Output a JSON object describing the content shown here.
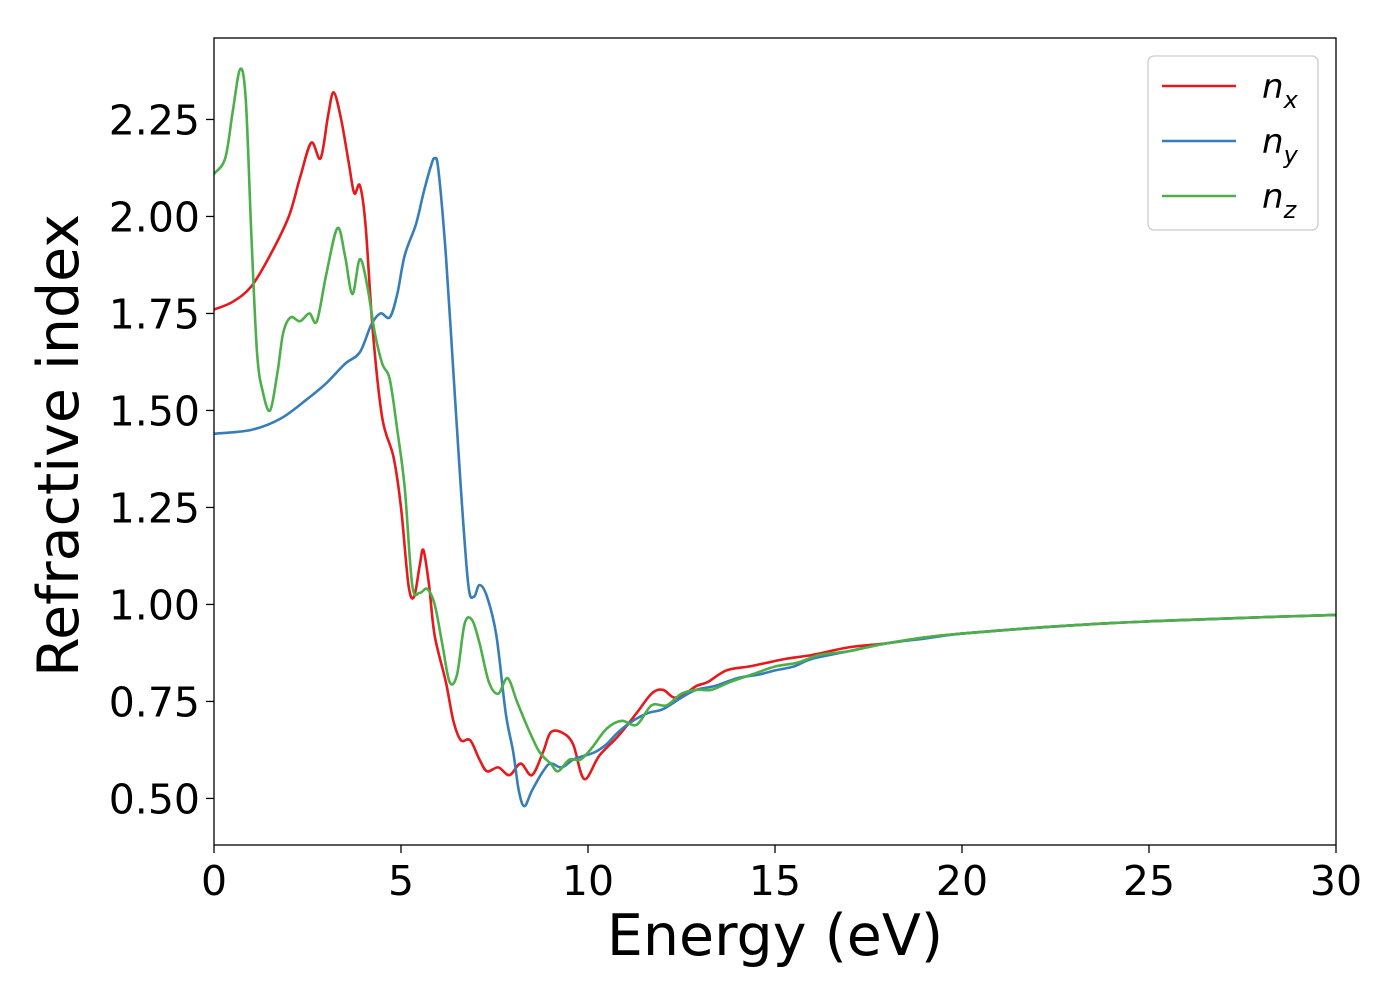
{
  "chart_data": {
    "type": "line",
    "title": "",
    "xlabel": "Energy (eV)",
    "ylabel": "Refractive index",
    "xlim": [
      0,
      30
    ],
    "ylim": [
      0.38,
      2.46
    ],
    "xticks": [
      0,
      5,
      10,
      15,
      20,
      25,
      30
    ],
    "xtick_labels": [
      "0",
      "5",
      "10",
      "15",
      "20",
      "25",
      "30"
    ],
    "yticks": [
      0.5,
      0.75,
      1.0,
      1.25,
      1.5,
      1.75,
      2.0,
      2.25
    ],
    "ytick_labels": [
      "0.50",
      "0.75",
      "1.00",
      "1.25",
      "1.50",
      "1.75",
      "2.00",
      "2.25"
    ],
    "grid": false,
    "legend_position": "top-right",
    "series": [
      {
        "name": "n",
        "subscript": "x",
        "color": "#e41a1c",
        "points": [
          [
            0,
            1.76
          ],
          [
            0.5,
            1.78
          ],
          [
            1.0,
            1.82
          ],
          [
            1.5,
            1.9
          ],
          [
            2.0,
            2.0
          ],
          [
            2.3,
            2.1
          ],
          [
            2.6,
            2.19
          ],
          [
            2.85,
            2.15
          ],
          [
            3.05,
            2.26
          ],
          [
            3.2,
            2.32
          ],
          [
            3.4,
            2.25
          ],
          [
            3.6,
            2.14
          ],
          [
            3.75,
            2.06
          ],
          [
            3.9,
            2.08
          ],
          [
            4.05,
            1.98
          ],
          [
            4.25,
            1.7
          ],
          [
            4.5,
            1.48
          ],
          [
            4.8,
            1.38
          ],
          [
            5.0,
            1.25
          ],
          [
            5.2,
            1.05
          ],
          [
            5.35,
            1.02
          ],
          [
            5.5,
            1.1
          ],
          [
            5.6,
            1.14
          ],
          [
            5.75,
            1.05
          ],
          [
            5.9,
            0.92
          ],
          [
            6.2,
            0.8
          ],
          [
            6.4,
            0.7
          ],
          [
            6.6,
            0.65
          ],
          [
            6.85,
            0.65
          ],
          [
            7.1,
            0.6
          ],
          [
            7.3,
            0.57
          ],
          [
            7.6,
            0.58
          ],
          [
            7.9,
            0.56
          ],
          [
            8.2,
            0.59
          ],
          [
            8.5,
            0.56
          ],
          [
            8.8,
            0.62
          ],
          [
            9.0,
            0.67
          ],
          [
            9.3,
            0.67
          ],
          [
            9.6,
            0.64
          ],
          [
            9.9,
            0.55
          ],
          [
            10.3,
            0.61
          ],
          [
            10.8,
            0.66
          ],
          [
            11.3,
            0.72
          ],
          [
            11.7,
            0.77
          ],
          [
            12.0,
            0.78
          ],
          [
            12.3,
            0.76
          ],
          [
            12.6,
            0.77
          ],
          [
            12.9,
            0.79
          ],
          [
            13.2,
            0.8
          ],
          [
            13.7,
            0.83
          ],
          [
            14.3,
            0.84
          ],
          [
            14.8,
            0.85
          ],
          [
            15.3,
            0.86
          ],
          [
            16,
            0.87
          ],
          [
            17,
            0.89
          ],
          [
            18,
            0.9
          ],
          [
            19,
            0.915
          ],
          [
            20,
            0.925
          ],
          [
            22,
            0.94
          ],
          [
            24,
            0.952
          ],
          [
            26,
            0.96
          ],
          [
            28,
            0.967
          ],
          [
            30,
            0.973
          ]
        ]
      },
      {
        "name": "n",
        "subscript": "y",
        "color": "#377eb8",
        "points": [
          [
            0,
            1.44
          ],
          [
            1.0,
            1.45
          ],
          [
            1.8,
            1.48
          ],
          [
            2.5,
            1.53
          ],
          [
            3.0,
            1.57
          ],
          [
            3.5,
            1.62
          ],
          [
            3.9,
            1.65
          ],
          [
            4.2,
            1.72
          ],
          [
            4.45,
            1.75
          ],
          [
            4.7,
            1.74
          ],
          [
            4.9,
            1.8
          ],
          [
            5.1,
            1.9
          ],
          [
            5.4,
            1.98
          ],
          [
            5.6,
            2.06
          ],
          [
            5.8,
            2.13
          ],
          [
            5.9,
            2.15
          ],
          [
            6.0,
            2.12
          ],
          [
            6.2,
            1.9
          ],
          [
            6.4,
            1.6
          ],
          [
            6.6,
            1.3
          ],
          [
            6.8,
            1.05
          ],
          [
            6.95,
            1.02
          ],
          [
            7.1,
            1.05
          ],
          [
            7.3,
            1.02
          ],
          [
            7.55,
            0.92
          ],
          [
            7.8,
            0.72
          ],
          [
            8.0,
            0.62
          ],
          [
            8.15,
            0.52
          ],
          [
            8.3,
            0.48
          ],
          [
            8.5,
            0.52
          ],
          [
            8.8,
            0.57
          ],
          [
            9.0,
            0.59
          ],
          [
            9.3,
            0.58
          ],
          [
            9.6,
            0.6
          ],
          [
            9.9,
            0.61
          ],
          [
            10.2,
            0.62
          ],
          [
            10.5,
            0.64
          ],
          [
            10.8,
            0.67
          ],
          [
            11.2,
            0.7
          ],
          [
            11.6,
            0.72
          ],
          [
            12.0,
            0.73
          ],
          [
            12.5,
            0.76
          ],
          [
            12.9,
            0.78
          ],
          [
            13.4,
            0.79
          ],
          [
            14.0,
            0.81
          ],
          [
            14.6,
            0.82
          ],
          [
            15.0,
            0.83
          ],
          [
            15.5,
            0.84
          ],
          [
            16,
            0.86
          ],
          [
            17,
            0.88
          ],
          [
            18,
            0.9
          ],
          [
            19,
            0.912
          ],
          [
            20,
            0.925
          ],
          [
            22,
            0.94
          ],
          [
            24,
            0.952
          ],
          [
            26,
            0.96
          ],
          [
            28,
            0.967
          ],
          [
            30,
            0.973
          ]
        ]
      },
      {
        "name": "n",
        "subscript": "z",
        "color": "#4daf4a",
        "points": [
          [
            0,
            2.11
          ],
          [
            0.3,
            2.15
          ],
          [
            0.5,
            2.27
          ],
          [
            0.7,
            2.38
          ],
          [
            0.85,
            2.3
          ],
          [
            1.0,
            1.95
          ],
          [
            1.15,
            1.65
          ],
          [
            1.3,
            1.55
          ],
          [
            1.5,
            1.5
          ],
          [
            1.7,
            1.6
          ],
          [
            1.85,
            1.7
          ],
          [
            2.05,
            1.74
          ],
          [
            2.3,
            1.73
          ],
          [
            2.55,
            1.75
          ],
          [
            2.75,
            1.73
          ],
          [
            3.0,
            1.85
          ],
          [
            3.3,
            1.97
          ],
          [
            3.5,
            1.9
          ],
          [
            3.7,
            1.8
          ],
          [
            3.9,
            1.89
          ],
          [
            4.1,
            1.82
          ],
          [
            4.3,
            1.7
          ],
          [
            4.5,
            1.62
          ],
          [
            4.7,
            1.58
          ],
          [
            4.9,
            1.45
          ],
          [
            5.1,
            1.3
          ],
          [
            5.3,
            1.05
          ],
          [
            5.5,
            1.03
          ],
          [
            5.7,
            1.04
          ],
          [
            5.9,
            1.0
          ],
          [
            6.1,
            0.9
          ],
          [
            6.3,
            0.8
          ],
          [
            6.5,
            0.82
          ],
          [
            6.7,
            0.95
          ],
          [
            6.9,
            0.96
          ],
          [
            7.1,
            0.9
          ],
          [
            7.35,
            0.8
          ],
          [
            7.6,
            0.77
          ],
          [
            7.85,
            0.81
          ],
          [
            8.1,
            0.75
          ],
          [
            8.4,
            0.68
          ],
          [
            8.7,
            0.62
          ],
          [
            9.0,
            0.59
          ],
          [
            9.2,
            0.57
          ],
          [
            9.5,
            0.6
          ],
          [
            9.8,
            0.6
          ],
          [
            10.1,
            0.63
          ],
          [
            10.5,
            0.68
          ],
          [
            10.9,
            0.7
          ],
          [
            11.3,
            0.69
          ],
          [
            11.7,
            0.74
          ],
          [
            12.1,
            0.74
          ],
          [
            12.5,
            0.77
          ],
          [
            12.9,
            0.78
          ],
          [
            13.3,
            0.78
          ],
          [
            13.8,
            0.8
          ],
          [
            14.4,
            0.82
          ],
          [
            15.0,
            0.84
          ],
          [
            15.6,
            0.85
          ],
          [
            16.2,
            0.87
          ],
          [
            17,
            0.88
          ],
          [
            18,
            0.9
          ],
          [
            19,
            0.915
          ],
          [
            20,
            0.925
          ],
          [
            22,
            0.94
          ],
          [
            24,
            0.952
          ],
          [
            26,
            0.96
          ],
          [
            28,
            0.967
          ],
          [
            30,
            0.973
          ]
        ]
      }
    ]
  }
}
